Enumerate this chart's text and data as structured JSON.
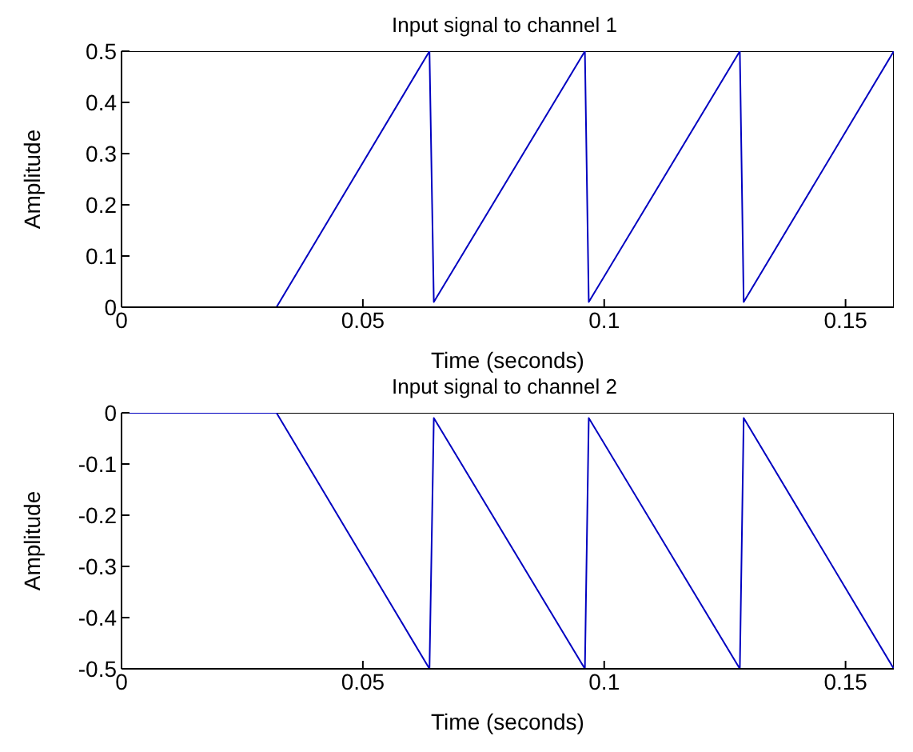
{
  "chart_data": [
    {
      "type": "line",
      "title": "Input signal to channel 1",
      "xlabel": "Time (seconds)",
      "ylabel": "Amplitude",
      "xlim": [
        0,
        0.16
      ],
      "xticks": [
        0,
        0.05,
        0.1,
        0.15
      ],
      "ylim": [
        0,
        0.5
      ],
      "yticks": [
        0,
        0.1,
        0.2,
        0.3,
        0.4,
        0.5
      ],
      "series": [
        {
          "color": "#0000c0",
          "x": [
            0,
            0.0321,
            0.0638,
            0.0647,
            0.096,
            0.0968,
            0.1281,
            0.1289,
            0.16
          ],
          "values": [
            0,
            0,
            0.5,
            0.01,
            0.5,
            0.01,
            0.5,
            0.01,
            0.5
          ]
        }
      ]
    },
    {
      "type": "line",
      "title": "Input signal to channel 2",
      "xlabel": "Time (seconds)",
      "ylabel": "Amplitude",
      "xlim": [
        0,
        0.16
      ],
      "xticks": [
        0,
        0.05,
        0.1,
        0.15
      ],
      "ylim": [
        -0.5,
        0
      ],
      "yticks": [
        -0.5,
        -0.4,
        -0.3,
        -0.2,
        -0.1,
        0
      ],
      "series": [
        {
          "color": "#0000c0",
          "x": [
            0,
            0.0321,
            0.0638,
            0.0647,
            0.096,
            0.0968,
            0.1281,
            0.1289,
            0.16
          ],
          "values": [
            0,
            0,
            -0.5,
            -0.01,
            -0.5,
            -0.01,
            -0.5,
            -0.01,
            -0.5
          ]
        }
      ]
    }
  ]
}
